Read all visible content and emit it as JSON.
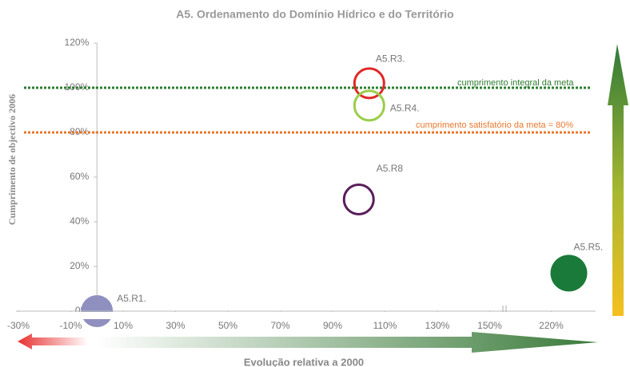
{
  "chart_data": {
    "type": "bubble",
    "title": "A5. Ordenamento do Domínio Hídrico e do Território",
    "xlabel": "Evolução relativa a 2000",
    "ylabel": "Cumprimento de objectivo 2006",
    "xlim": [
      -30,
      290
    ],
    "ylim": [
      0,
      120
    ],
    "xticks": [
      {
        "value": -30,
        "label": "-30%"
      },
      {
        "value": -10,
        "label": "-10%"
      },
      {
        "value": 10,
        "label": "10%"
      },
      {
        "value": 30,
        "label": "30%"
      },
      {
        "value": 50,
        "label": "50%"
      },
      {
        "value": 70,
        "label": "70%"
      },
      {
        "value": 90,
        "label": "90%"
      },
      {
        "value": 110,
        "label": "110%"
      },
      {
        "value": 130,
        "label": "130%"
      },
      {
        "value": 150,
        "label": "150%"
      },
      {
        "value": 220,
        "label": "220%"
      }
    ],
    "axis_break": true,
    "yticks": [
      {
        "value": 0,
        "label": "0%"
      },
      {
        "value": 20,
        "label": "20%"
      },
      {
        "value": 40,
        "label": "40%"
      },
      {
        "value": 60,
        "label": "60%"
      },
      {
        "value": 80,
        "label": "80%"
      },
      {
        "value": 100,
        "label": "100%"
      },
      {
        "value": 120,
        "label": "120%"
      }
    ],
    "reference_lines": [
      {
        "value": 100,
        "label": "cumprimento integral da meta",
        "color": "#2e7d32"
      },
      {
        "value": 80,
        "label": "cumprimento satisfatório da meta = 80%",
        "color": "#e8772e"
      }
    ],
    "points": [
      {
        "name": "A5.R1.",
        "x": 0,
        "y": 0,
        "color": "#9090c0",
        "filled": true
      },
      {
        "name": "A5.R3.",
        "x": 104,
        "y": 102,
        "color": "#e02828",
        "filled": false
      },
      {
        "name": "A5.R4.",
        "x": 104,
        "y": 92,
        "color": "#9acd4a",
        "filled": false
      },
      {
        "name": "A5.R8",
        "x": 100,
        "y": 50,
        "color": "#5a1e5a",
        "filled": false
      },
      {
        "name": "A5.R5.",
        "x": 240,
        "y": 17,
        "color": "#1a7a3a",
        "filled": true
      }
    ]
  }
}
